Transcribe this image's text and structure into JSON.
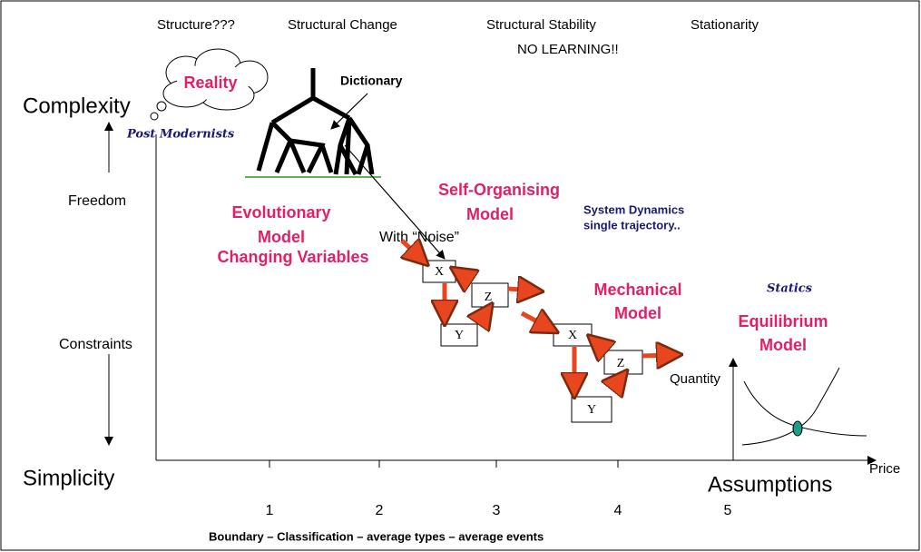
{
  "header": {
    "stages": [
      "Structure???",
      "Structural Change",
      "Structural Stability",
      "Stationarity"
    ],
    "note": "NO LEARNING!!"
  },
  "axes": {
    "top": "Complexity",
    "bottom": "Simplicity",
    "upper_side": "Freedom",
    "lower_side": "Constraints",
    "right": "Assumptions",
    "ticks": [
      "1",
      "2",
      "3",
      "4",
      "5"
    ],
    "caption": "Boundary – Classification – average types – average events"
  },
  "labels": {
    "reality": "Reality",
    "dictionary": "Dictionary",
    "post_modernists": "Post Modernists",
    "evolutionary": [
      "Evolutionary",
      "Model"
    ],
    "changing_variables": "Changing Variables",
    "noise": "With “Noise”",
    "self_organising": [
      "Self-Organising",
      "Model"
    ],
    "system_dynamics": [
      "System Dynamics",
      "single trajectory.."
    ],
    "mechanical": [
      "Mechanical",
      "Model"
    ],
    "statics": "Statics",
    "equilibrium": [
      "Equilibrium",
      "Model"
    ],
    "quantity": "Quantity",
    "price": "Price"
  },
  "boxes": [
    "X",
    "Y",
    "Z",
    "X",
    "Z",
    "Y"
  ]
}
